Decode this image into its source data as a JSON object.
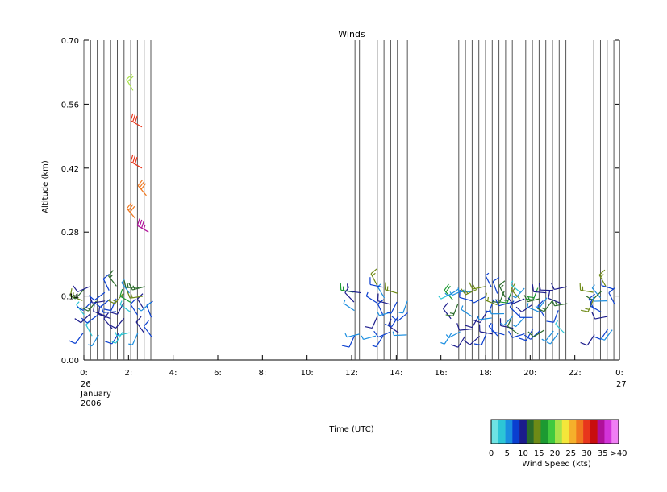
{
  "chart_data": {
    "type": "wind-barb",
    "title": "Winds",
    "ylabel": "Altitude (km)",
    "xlabel": "Time (UTC)",
    "ylim": [
      0.0,
      0.7
    ],
    "xlim_hours": [
      0,
      24
    ],
    "y_ticks": [
      "0.00",
      "0.14",
      "0.28",
      "0.42",
      "0.56",
      "0.70"
    ],
    "x_ticks": [
      {
        "hour": 0,
        "label": "0:",
        "sub": [
          "26",
          "January",
          "2006"
        ]
      },
      {
        "hour": 2,
        "label": "2:"
      },
      {
        "hour": 4,
        "label": "4:"
      },
      {
        "hour": 6,
        "label": "6:"
      },
      {
        "hour": 8,
        "label": "8:"
      },
      {
        "hour": 10,
        "label": "10:"
      },
      {
        "hour": 12,
        "label": "12:"
      },
      {
        "hour": 14,
        "label": "14:"
      },
      {
        "hour": 16,
        "label": "16:"
      },
      {
        "hour": 18,
        "label": "18:"
      },
      {
        "hour": 20,
        "label": "20:"
      },
      {
        "hour": 22,
        "label": "22:"
      },
      {
        "hour": 24,
        "label": "0:",
        "sub": [
          "27"
        ]
      }
    ],
    "profile_times_hours": [
      0.0,
      0.3,
      0.6,
      0.9,
      1.2,
      1.5,
      1.8,
      2.1,
      2.4,
      2.7,
      3.0,
      12.15,
      12.35,
      13.15,
      13.45,
      13.75,
      14.05,
      14.5,
      16.5,
      16.8,
      17.1,
      17.4,
      17.7,
      18.0,
      18.3,
      18.6,
      18.9,
      19.2,
      19.5,
      19.8,
      20.1,
      20.4,
      20.7,
      21.0,
      21.3,
      21.6,
      22.85,
      23.15,
      23.45,
      23.75
    ],
    "barbs": [
      {
        "t": 2.2,
        "alt": 0.59,
        "speed_kts": 22,
        "dir": 330
      },
      {
        "t": 2.6,
        "alt": 0.51,
        "speed_kts": 31,
        "dir": 300
      },
      {
        "t": 2.6,
        "alt": 0.42,
        "speed_kts": 31,
        "dir": 300
      },
      {
        "t": 2.8,
        "alt": 0.36,
        "speed_kts": 29,
        "dir": 320
      },
      {
        "t": 2.3,
        "alt": 0.31,
        "speed_kts": 29,
        "dir": 320
      },
      {
        "t": 2.9,
        "alt": 0.28,
        "speed_kts": 36,
        "dir": 300
      }
    ],
    "colorbar": {
      "label": "Wind Speed (kts)",
      "tick_labels": [
        "0",
        "5",
        "10",
        "15",
        "20",
        "25",
        "30",
        "35",
        ">40"
      ],
      "colors": [
        "#6ee3e3",
        "#2cc6d6",
        "#1a8ee0",
        "#0a3fd0",
        "#1b1b8c",
        "#2a6b2a",
        "#6e8a16",
        "#1c9a32",
        "#3fc93f",
        "#a8e24a",
        "#f4e63a",
        "#f5b02b",
        "#f0781f",
        "#e8361c",
        "#c80e0e",
        "#b0109a",
        "#d233d9",
        "#f07ef4"
      ]
    }
  }
}
